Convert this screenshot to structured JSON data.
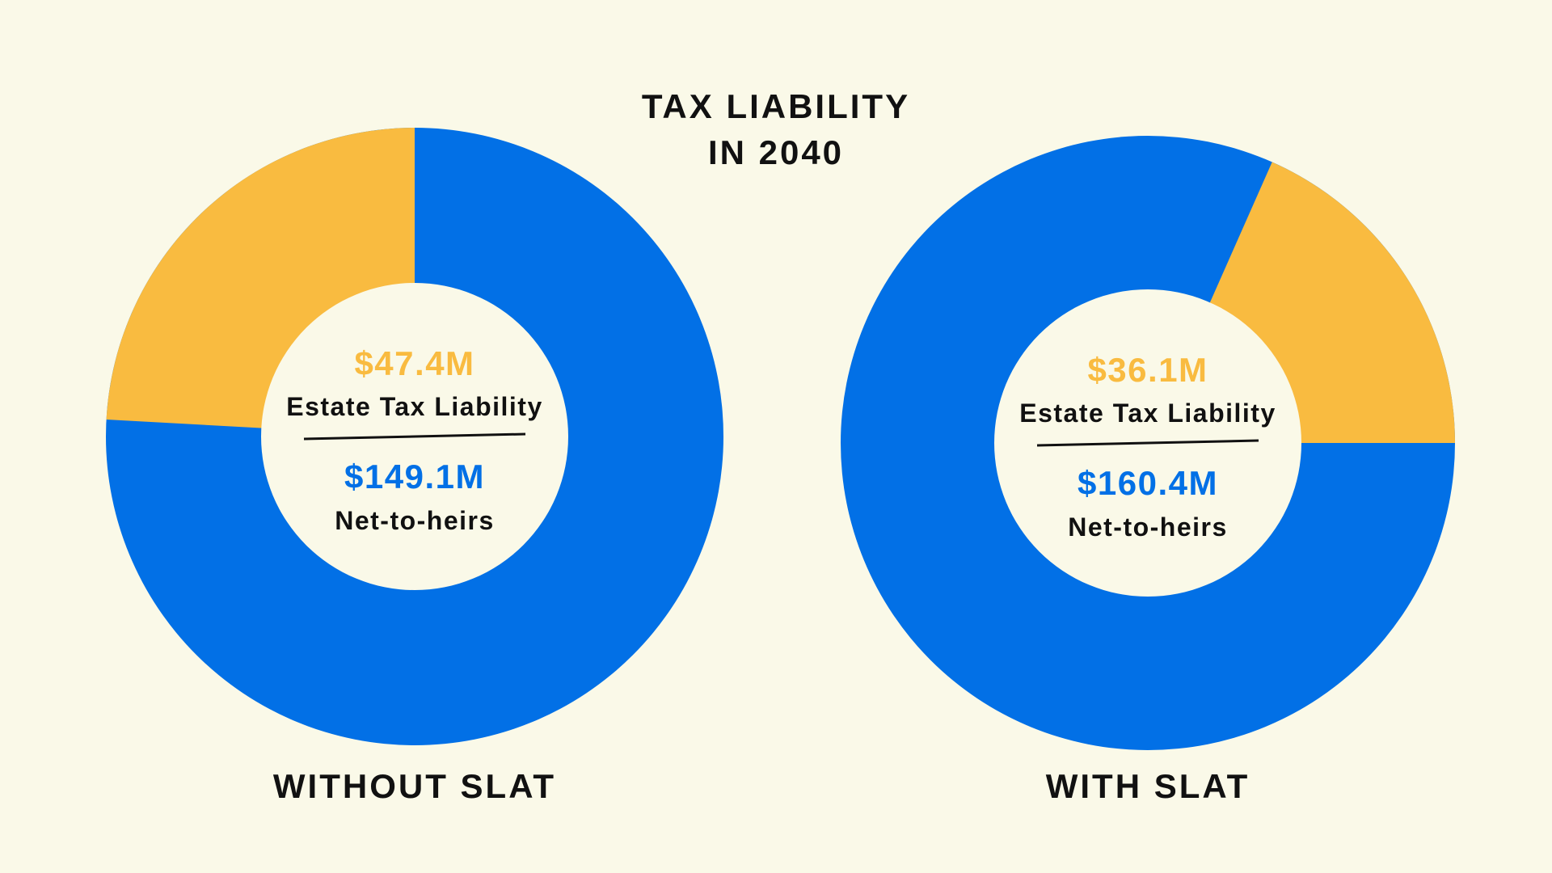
{
  "title_lines": [
    "TAX LIABILITY",
    "IN 2040"
  ],
  "colors": {
    "background": "#FAF9E8",
    "tax": "#F9BB40",
    "net": "#0270E6",
    "text": "#111111",
    "divider": "#111111"
  },
  "chart_data": [
    {
      "type": "pie",
      "title": "WITHOUT SLAT",
      "slices": [
        {
          "label": "Estate Tax Liability",
          "value": 47.4,
          "value_label": "$47.4M",
          "color": "#F9BB40"
        },
        {
          "label": "Net-to-heirs",
          "value": 149.1,
          "value_label": "$149.1M",
          "color": "#0270E6"
        }
      ]
    },
    {
      "type": "pie",
      "title": "WITH SLAT",
      "slices": [
        {
          "label": "Estate Tax Liability",
          "value": 36.1,
          "value_label": "$36.1M",
          "color": "#F9BB40"
        },
        {
          "label": "Net-to-heirs",
          "value": 160.4,
          "value_label": "$160.4M",
          "color": "#0270E6"
        }
      ]
    }
  ]
}
